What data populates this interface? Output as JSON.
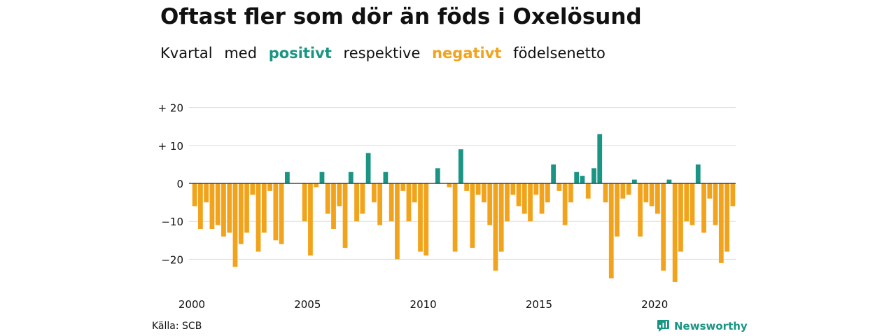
{
  "header": {
    "title": "Oftast fler som dör än föds i Oxelösund",
    "subtitle": {
      "w1": "Kvartal",
      "w2": "med",
      "positive": "positivt",
      "w3": "respektive",
      "negative": "negativt",
      "w4": "födelsenetto"
    }
  },
  "footer": {
    "source": "Källa: SCB",
    "brand": "Newsworthy"
  },
  "colors": {
    "positive": "#1a9584",
    "negative": "#f2a31c",
    "grid": "#dddddd",
    "baseline": "#222222"
  },
  "chart_data": {
    "type": "bar",
    "x_start": "2000 Q1",
    "x_ticks": [
      "2000",
      "2005",
      "2010",
      "2015",
      "2020"
    ],
    "y_ticks": [
      "+ 20",
      "+ 10",
      "0",
      "−10",
      "−20"
    ],
    "y_tick_values": [
      20,
      10,
      0,
      -10,
      -20
    ],
    "ylim": [
      -27,
      20
    ],
    "grid": true,
    "values": [
      -6,
      -12,
      -5,
      -12,
      -11,
      -14,
      -13,
      -22,
      -16,
      -13,
      -3,
      -18,
      -13,
      -2,
      -15,
      -16,
      3,
      0,
      0,
      -10,
      -19,
      -1,
      3,
      -8,
      -12,
      -6,
      -17,
      3,
      -10,
      -8,
      8,
      -5,
      -11,
      3,
      -10,
      -20,
      -2,
      -10,
      -5,
      -18,
      -19,
      0,
      4,
      0,
      -1,
      -18,
      9,
      -2,
      -17,
      -3,
      -5,
      -11,
      -23,
      -18,
      -10,
      -3,
      -6,
      -8,
      -10,
      -3,
      -8,
      -5,
      5,
      -2,
      -11,
      -5,
      3,
      2,
      -4,
      4,
      13,
      -5,
      -25,
      -14,
      -4,
      -3,
      1,
      -14,
      -5,
      -6,
      -8,
      -23,
      1,
      -26,
      -18,
      -10,
      -11,
      5,
      -13,
      -4,
      -11,
      -21,
      -18,
      -6
    ]
  }
}
